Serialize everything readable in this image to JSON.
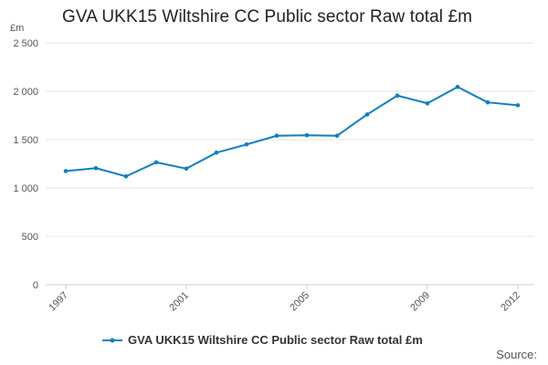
{
  "chart_data": {
    "type": "line",
    "title": "GVA UKK15 Wiltshire CC Public sector Raw total £m",
    "ylabel": "£m",
    "xlabel": "",
    "x": [
      1997,
      1998,
      1999,
      2000,
      2001,
      2002,
      2003,
      2004,
      2005,
      2006,
      2007,
      2008,
      2009,
      2010,
      2011,
      2012
    ],
    "x_tick_labels": [
      "1997",
      "2001",
      "2005",
      "2009",
      "2012"
    ],
    "y_tick_labels": [
      "2 500",
      "2 000",
      "1 500",
      "1 000",
      "500",
      "0"
    ],
    "y_ticks": [
      2500,
      2000,
      1500,
      1000,
      500,
      0
    ],
    "ylim": [
      0,
      2500
    ],
    "grid": true,
    "legend_position": "bottom",
    "series": [
      {
        "name": "GVA UKK15 Wiltshire CC Public sector Raw total £m",
        "color": "#0f7fbf",
        "values": [
          1175,
          1205,
          1120,
          1265,
          1200,
          1365,
          1450,
          1540,
          1545,
          1540,
          1760,
          1955,
          1875,
          2045,
          1885,
          1855
        ]
      }
    ],
    "source_label": "Source:"
  }
}
